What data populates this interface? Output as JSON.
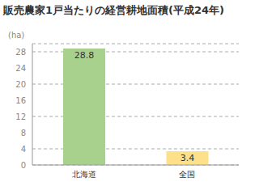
{
  "chart_data": {
    "type": "bar",
    "title": "販売農家1戸当たりの経営耕地面積(平成24年)",
    "y_label": "(ha)",
    "categories": [
      "北海道",
      "全国"
    ],
    "values": [
      28.8,
      3.4
    ],
    "colors": [
      "#a9d18e",
      "#ffe08a"
    ],
    "ylim": [
      0,
      30
    ],
    "yticks": [
      0,
      4,
      8,
      12,
      16,
      20,
      24,
      28
    ],
    "grid": true,
    "data_labels": true
  }
}
